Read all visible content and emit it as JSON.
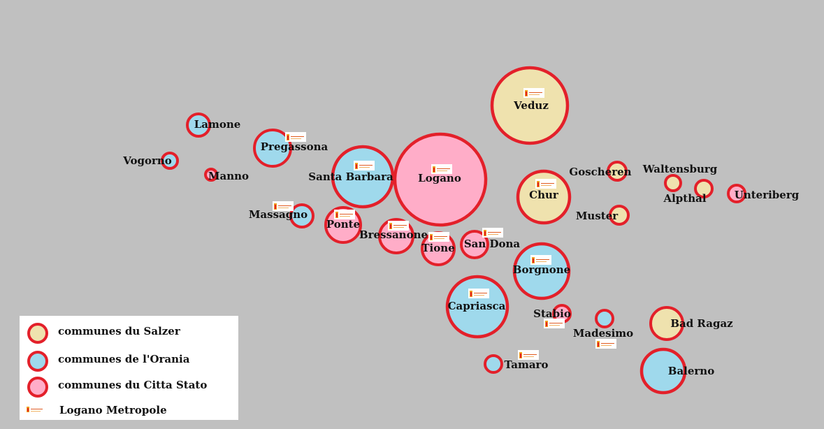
{
  "colors": {
    "background": "#c0c0c0",
    "border": "#e3202a",
    "salzer": "#efe2ae",
    "orania": "#9fd9ec",
    "citta_stato": "#ffadc8"
  },
  "communes": [
    {
      "name": "Veduz",
      "group": "salzer",
      "metropole": true
    },
    {
      "name": "Logano",
      "group": "citta_stato",
      "metropole": true
    },
    {
      "name": "Santa Barbara",
      "group": "orania",
      "metropole": true
    },
    {
      "name": "Pregassona",
      "group": "orania",
      "metropole": true
    },
    {
      "name": "Lamone",
      "group": "orania",
      "metropole": false
    },
    {
      "name": "Vogorno",
      "group": "orania",
      "metropole": false
    },
    {
      "name": "Manno",
      "group": "citta_stato",
      "metropole": false
    },
    {
      "name": "Massagno",
      "group": "orania",
      "metropole": true
    },
    {
      "name": "Ponte",
      "group": "citta_stato",
      "metropole": true
    },
    {
      "name": "Bressanone",
      "group": "citta_stato",
      "metropole": true
    },
    {
      "name": "Tione",
      "group": "citta_stato",
      "metropole": true
    },
    {
      "name": "San Dona",
      "group": "citta_stato",
      "metropole": true
    },
    {
      "name": "Chur",
      "group": "salzer",
      "metropole": true
    },
    {
      "name": "Goscheren",
      "group": "salzer",
      "metropole": false
    },
    {
      "name": "Muster",
      "group": "salzer",
      "metropole": false
    },
    {
      "name": "Waltensburg",
      "group": "salzer",
      "metropole": false
    },
    {
      "name": "Alpthal",
      "group": "salzer",
      "metropole": false
    },
    {
      "name": "Unteriberg",
      "group": "citta_stato",
      "metropole": false
    },
    {
      "name": "Borgnone",
      "group": "orania",
      "metropole": true
    },
    {
      "name": "Capriasca",
      "group": "orania",
      "metropole": true
    },
    {
      "name": "Stabio",
      "group": "citta_stato",
      "metropole": true
    },
    {
      "name": "Madesimo",
      "group": "orania",
      "metropole": true
    },
    {
      "name": "Bad Ragaz",
      "group": "salzer",
      "metropole": false
    },
    {
      "name": "Tamaro",
      "group": "orania",
      "metropole": true
    },
    {
      "name": "Balerno",
      "group": "orania",
      "metropole": false
    }
  ],
  "legend": {
    "salzer": "communes du Salzer",
    "orania": "communes de l'Orania",
    "citta_stato": "communes du Citta Stato",
    "metropole": "Logano Metropole"
  }
}
